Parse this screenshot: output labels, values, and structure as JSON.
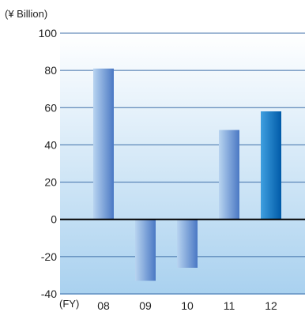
{
  "chart_data": {
    "type": "bar",
    "unit_label": "(¥ Billion)",
    "x_prefix_label": "(FY)",
    "categories": [
      "08",
      "09",
      "10",
      "11",
      "12"
    ],
    "values": [
      81,
      -33,
      -26,
      48,
      58
    ],
    "highlight_index": 4,
    "ylim": [
      -40,
      100
    ],
    "yticks": [
      -40,
      -20,
      0,
      20,
      40,
      60,
      80,
      100
    ],
    "grid": true,
    "legend": "none",
    "colors": {
      "bar_light": "#b8d4f0",
      "bar_dark": "#4a78c4",
      "highlight_light": "#3fa0e0",
      "highlight_dark": "#005aa8",
      "grid": "#3f6fa8",
      "zero_line": "#000000",
      "bg_top": "#ffffff",
      "bg_bottom": "#a9d1ef"
    }
  }
}
